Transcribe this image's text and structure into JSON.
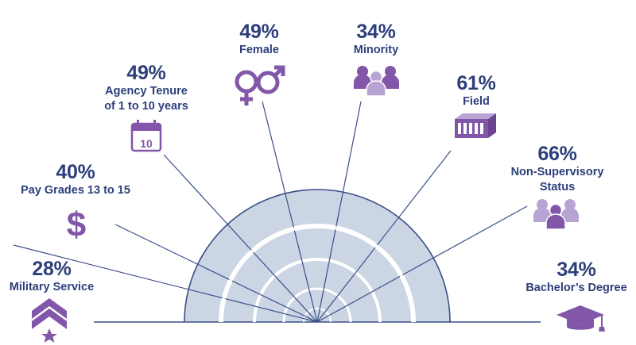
{
  "colors": {
    "text": "#2c3f7a",
    "icon": "#8256a8",
    "icon_light": "#b7a4d3",
    "arc_fill": "#ccd5e4",
    "lines": "#3a4f86"
  },
  "items": [
    {
      "percent": "28%",
      "caption": [
        "Military Service"
      ],
      "icon": "chevron-star-icon"
    },
    {
      "percent": "40%",
      "caption": [
        "Pay Grades 13 to 15"
      ],
      "icon": "dollar-icon"
    },
    {
      "percent": "49%",
      "caption": [
        "Agency Tenure",
        "of 1 to 10 years"
      ],
      "icon": "calendar-icon",
      "icon_text": "10"
    },
    {
      "percent": "49%",
      "caption": [
        "Female"
      ],
      "icon": "gender-icon"
    },
    {
      "percent": "34%",
      "caption": [
        "Minority"
      ],
      "icon": "people-group-icon"
    },
    {
      "percent": "61%",
      "caption": [
        "Field"
      ],
      "icon": "building-icon"
    },
    {
      "percent": "66%",
      "caption": [
        "Non-Supervisory",
        "Status"
      ],
      "icon": "people-group-icon"
    },
    {
      "percent": "34%",
      "caption": [
        "Bachelor’s Degree"
      ],
      "icon": "graduation-cap-icon"
    }
  ]
}
